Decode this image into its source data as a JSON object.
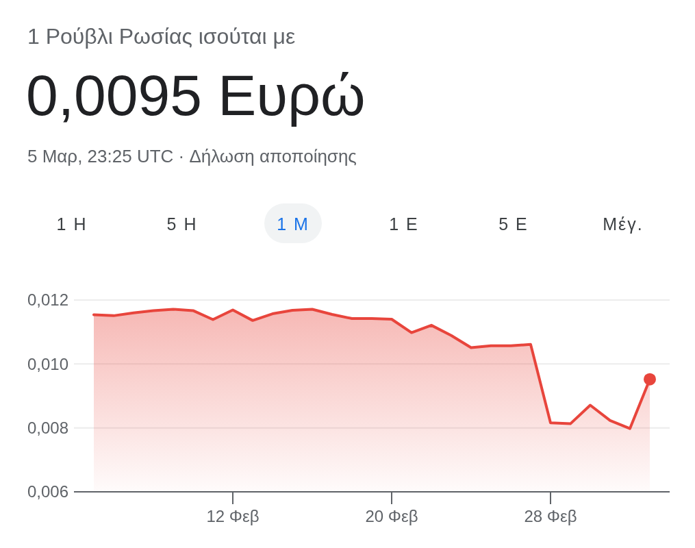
{
  "chart_data": {
    "type": "area",
    "subtitle": "1 Ρούβλι Ρωσίας ισούται με",
    "title": "0,0095 Ευρώ",
    "annotations": [
      "5 Μαρ, 23:25 UTC · Δήλωση αποποίησης",
      "1 Η",
      "5 Η",
      "1 Μ",
      "1 Ε",
      "5 Ε",
      "Μέγ."
    ],
    "x": [
      "--02-05",
      "--02-06",
      "--02-07",
      "--02-08",
      "--02-09",
      "--02-10",
      "--02-11",
      "--02-12",
      "--02-13",
      "--02-14",
      "--02-15",
      "--02-16",
      "--02-17",
      "--02-18",
      "--02-19",
      "--02-20",
      "--02-21",
      "--02-22",
      "--02-23",
      "--02-24",
      "--02-25",
      "--02-26",
      "--02-27",
      "--02-28",
      "--03-01",
      "--03-02",
      "--03-03",
      "--03-04",
      "--03-05"
    ],
    "series": [
      {
        "color": "#e8453c",
        "values": [
          0.01154,
          0.01151,
          0.0116,
          0.01167,
          0.01171,
          0.01167,
          0.01139,
          0.01169,
          0.01136,
          0.01157,
          0.01168,
          0.01171,
          0.01155,
          0.01142,
          0.01142,
          0.0114,
          0.01098,
          0.01121,
          0.01089,
          0.01051,
          0.01057,
          0.01057,
          0.01061,
          0.00816,
          0.00813,
          0.00871,
          0.00823,
          0.00798,
          0.00952
        ]
      }
    ],
    "xlim": [
      "--02-04",
      "--03-06"
    ],
    "xticks": [
      {
        "value": "--02-12",
        "label": "12 Φεβ"
      },
      {
        "value": "--02-20",
        "label": "20 Φεβ"
      },
      {
        "value": "--02-28",
        "label": "28 Φεβ"
      }
    ],
    "ylim": [
      0.006,
      0.012
    ],
    "yticks": [
      {
        "value": 0.006,
        "label": "0,006"
      },
      {
        "value": 0.008,
        "label": "0,008"
      },
      {
        "value": 0.01,
        "label": "0,010"
      },
      {
        "value": 0.012,
        "label": "0,012"
      }
    ],
    "grid": "y"
  }
}
